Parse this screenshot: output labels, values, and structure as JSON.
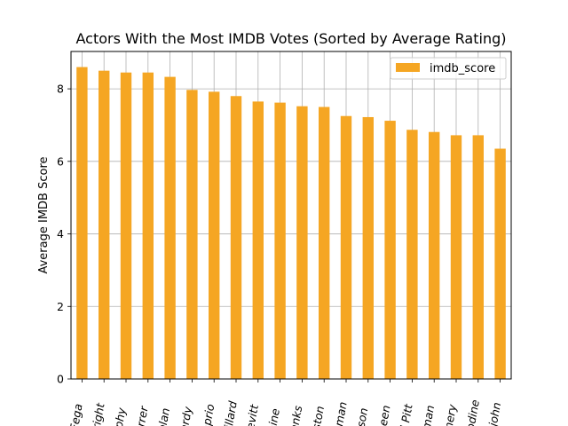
{
  "chart_data": {
    "type": "bar",
    "title": "Actors With the Most IMDB Votes (Sorted by Average Rating)",
    "xlabel": "",
    "ylabel": "Average IMDB Score",
    "ylim": [
      0,
      9.03
    ],
    "yticks": [
      0,
      2,
      4,
      6,
      8
    ],
    "grid": true,
    "legend_position": "top-right",
    "categories": [
      "s Fega",
      "Wright",
      "urphy",
      "Farrer",
      "Nolan",
      "Hardy",
      "Caprio",
      "ntillard",
      "-Levitt",
      "Caine",
      "Hanks",
      "inston",
      "eeman",
      "ckson",
      "Sheen",
      "ad Pitt",
      "ldman",
      "omery",
      "Modine",
      "pajohn"
    ],
    "series": [
      {
        "name": "imdb_score",
        "color": "#f5a623",
        "values": [
          8.6,
          8.5,
          8.45,
          8.45,
          8.33,
          7.97,
          7.92,
          7.8,
          7.65,
          7.62,
          7.52,
          7.5,
          7.25,
          7.22,
          7.12,
          6.87,
          6.81,
          6.72,
          6.72,
          6.35
        ]
      }
    ]
  }
}
